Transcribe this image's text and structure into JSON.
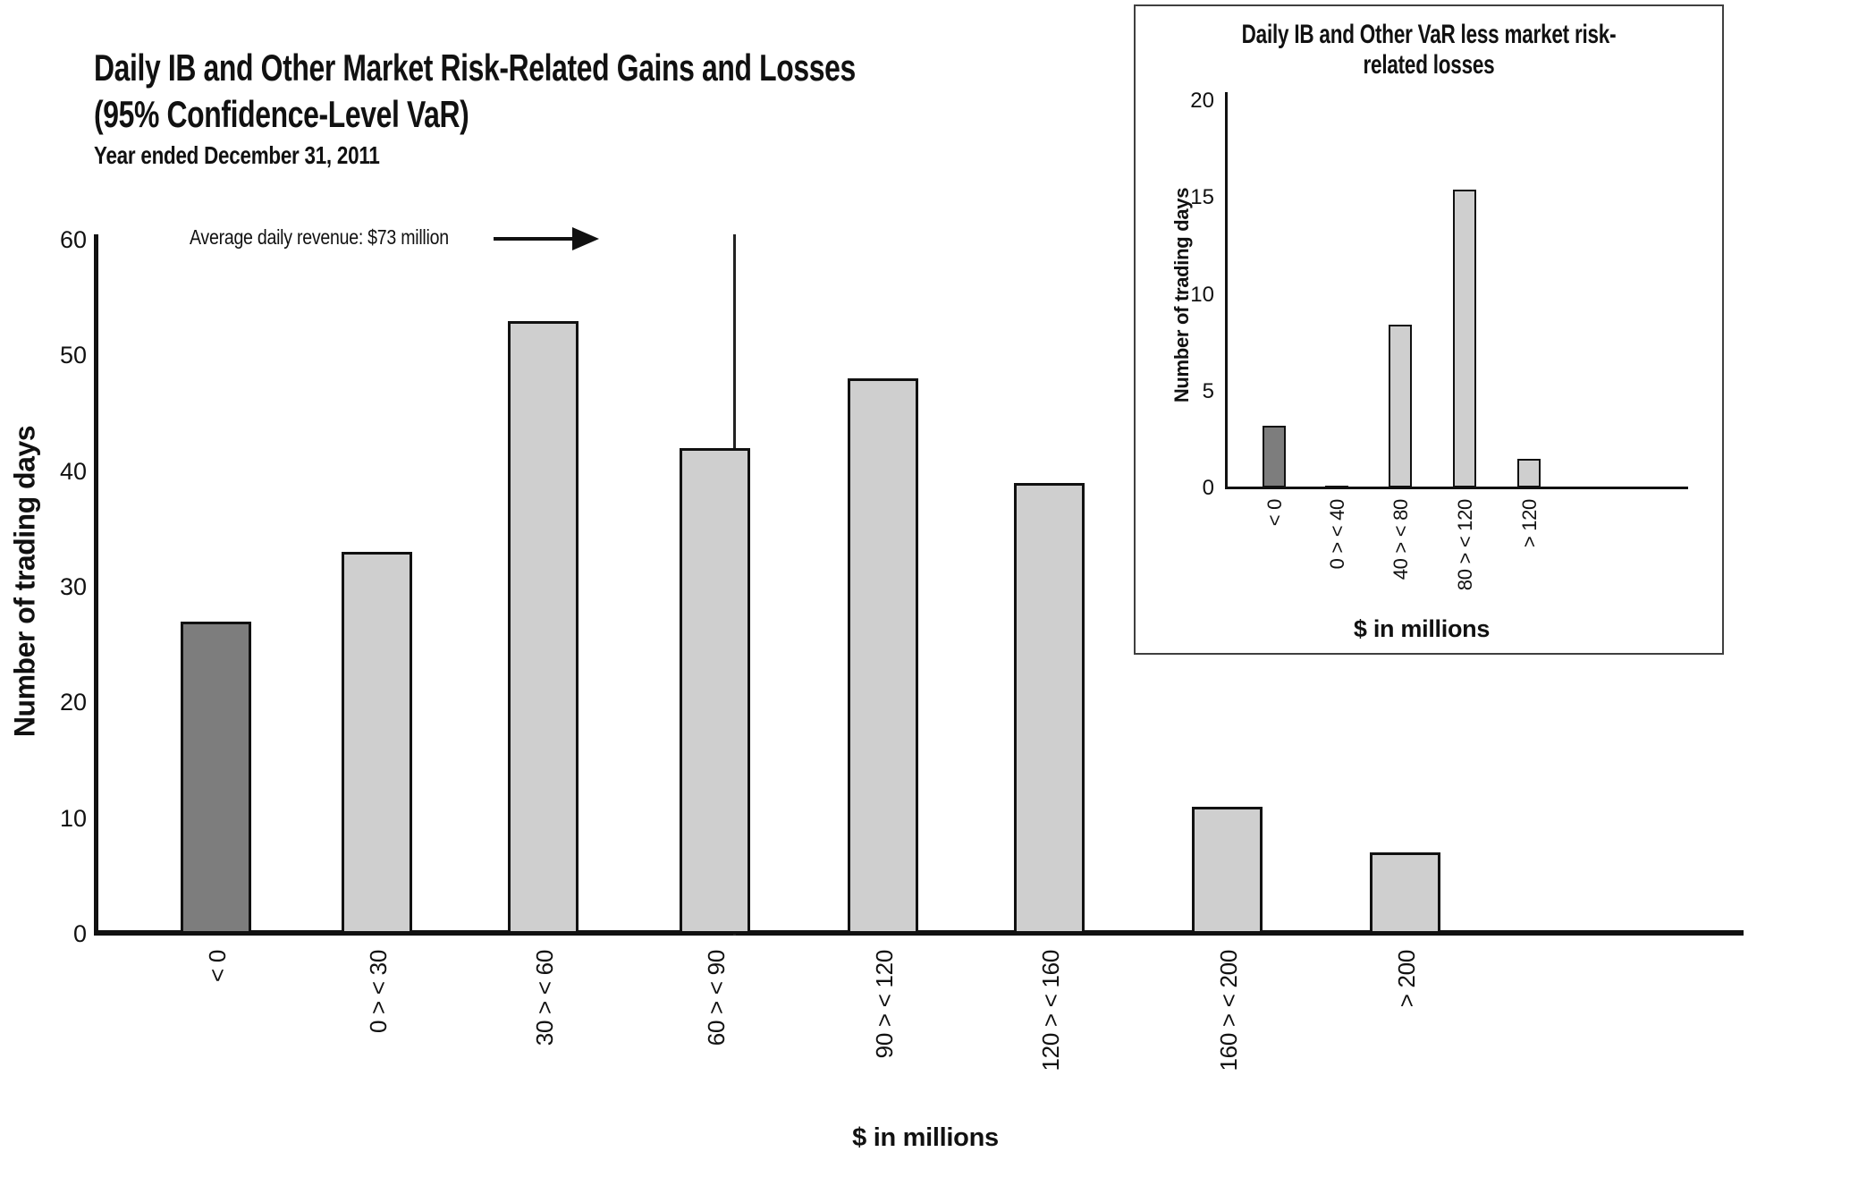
{
  "header": {
    "title_line1": "Daily IB and Other Market Risk-Related Gains and Losses",
    "title_line2": "(95% Confidence-Level VaR)",
    "subtitle": "Year ended December 31, 2011"
  },
  "colors": {
    "bar_light": "#cfcfcf",
    "bar_dark": "#7d7d7d",
    "axis": "#111111",
    "inset_border": "#3f3f3f"
  },
  "chart_data": [
    {
      "id": "main",
      "type": "bar",
      "title": "Daily IB and Other Market Risk-Related Gains and Losses (95% Confidence-Level VaR)",
      "subtitle": "Year ended December 31, 2011",
      "xlabel": "$ in millions",
      "ylabel": "Number of trading days",
      "categories": [
        "< 0",
        "0 > < 30",
        "30 > < 60",
        "60 > < 90",
        "90 > < 120",
        "120 > < 160",
        "160 > < 200",
        "> 200"
      ],
      "values": [
        27,
        33,
        53,
        42,
        48,
        39,
        11,
        7
      ],
      "y_ticks": [
        0,
        10,
        20,
        30,
        40,
        50,
        60
      ],
      "ylim": [
        0,
        60
      ],
      "grid": false,
      "legend": "none",
      "highlight_index": 0,
      "annotation": {
        "text": "Average daily revenue: $73 million",
        "x_value": 73,
        "marker": "vertical-line-with-arrow"
      }
    },
    {
      "id": "inset",
      "type": "bar",
      "title": "Daily IB and Other VaR less market risk-related losses",
      "xlabel": "$ in millions",
      "ylabel": "Number of trading days",
      "categories": [
        "< 0",
        "0 > < 40",
        "40 > < 80",
        "80 > < 120",
        "> 120"
      ],
      "values": [
        3.2,
        0.1,
        8.4,
        15.4,
        1.5
      ],
      "y_ticks": [
        0,
        5,
        10,
        15,
        20
      ],
      "ylim": [
        0,
        20
      ],
      "grid": false,
      "legend": "none",
      "highlight_index": 0
    }
  ]
}
